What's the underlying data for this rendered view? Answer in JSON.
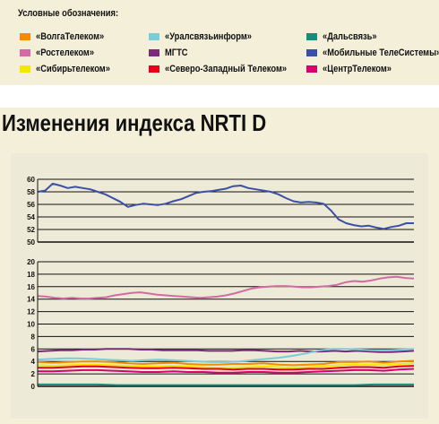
{
  "legend": {
    "title": "Условные обозначения:",
    "items": [
      {
        "label": "«ВолгаТелеком»",
        "color": "#f28c00"
      },
      {
        "label": "«Уралсвязьинформ»",
        "color": "#7ccbd8"
      },
      {
        "label": "«Дальсвязь»",
        "color": "#1a8a7a"
      },
      {
        "label": "«Ростелеком»",
        "color": "#d46aa3"
      },
      {
        "label": "МГТС",
        "color": "#7a2a7a"
      },
      {
        "label": "«Мобильные ТелеСистемы»",
        "color": "#3c4fa8"
      },
      {
        "label": "«Сибирьтелеком»",
        "color": "#f5e600"
      },
      {
        "label": "«Северо-Западный Телеком»",
        "color": "#e3001b"
      },
      {
        "label": "«ЦентрТелеком»",
        "color": "#d6006f"
      }
    ]
  },
  "heading": "Изменения индекса NRTI D",
  "chart_data": [
    {
      "type": "line",
      "ylim": [
        50,
        60
      ],
      "yticks": [
        "50",
        "52",
        "54",
        "56",
        "58",
        "60"
      ],
      "grid": true,
      "series": [
        {
          "name": "«Мобильные ТелеСистемы»",
          "color": "#3c4fa8",
          "values": [
            58.0,
            58.2,
            59.3,
            59.0,
            58.6,
            58.8,
            58.6,
            58.4,
            58.0,
            57.6,
            57.0,
            56.4,
            55.6,
            55.9,
            56.1,
            56.0,
            55.9,
            56.1,
            56.5,
            56.8,
            57.3,
            57.8,
            58.0,
            58.1,
            58.3,
            58.5,
            58.9,
            59.0,
            58.6,
            58.4,
            58.2,
            58.0,
            57.6,
            57.0,
            56.5,
            56.3,
            56.4,
            56.3,
            56.1,
            55.0,
            53.6,
            53.0,
            52.7,
            52.5,
            52.6,
            52.3,
            52.1,
            52.4,
            52.6,
            53.0,
            53.0
          ]
        }
      ]
    },
    {
      "type": "line",
      "ylim": [
        0,
        20
      ],
      "yticks": [
        "0",
        "2",
        "4",
        "6",
        "8",
        "10",
        "12",
        "14",
        "16",
        "18",
        "20"
      ],
      "grid": true,
      "series": [
        {
          "name": "«Ростелеком»",
          "color": "#d46aa3",
          "values": [
            14.5,
            14.4,
            14.2,
            14.1,
            14.2,
            14.1,
            14.1,
            14.2,
            14.3,
            14.6,
            14.8,
            15.0,
            15.1,
            14.9,
            14.7,
            14.6,
            14.5,
            14.4,
            14.3,
            14.2,
            14.3,
            14.4,
            14.6,
            14.9,
            15.3,
            15.7,
            15.9,
            16.0,
            16.1,
            16.1,
            16.0,
            15.9,
            15.9,
            16.0,
            16.1,
            16.3,
            16.7,
            16.9,
            16.8,
            17.0,
            17.3,
            17.5,
            17.6,
            17.4,
            17.3
          ]
        },
        {
          "name": "МГТС",
          "color": "#7a2a7a",
          "values": [
            5.6,
            5.7,
            5.8,
            5.8,
            5.9,
            5.9,
            6.0,
            6.0,
            6.0,
            5.9,
            5.9,
            5.8,
            5.8,
            5.8,
            5.8,
            5.7,
            5.7,
            5.7,
            5.8,
            5.8,
            5.7,
            5.6,
            5.6,
            5.7,
            5.6,
            5.6,
            5.7,
            5.6,
            5.7,
            5.6,
            5.5,
            5.5,
            5.6,
            5.7
          ]
        },
        {
          "name": "«Уралсвязьинформ»",
          "color": "#7ccbd8",
          "values": [
            4.3,
            4.4,
            4.5,
            4.5,
            4.4,
            4.3,
            4.2,
            4.1,
            4.2,
            4.3,
            4.2,
            4.1,
            4.0,
            3.9,
            3.9,
            4.0,
            4.2,
            4.4,
            4.6,
            4.9,
            5.3,
            5.8,
            6.0,
            6.0,
            5.9,
            5.8,
            5.8,
            5.9,
            6.0
          ]
        },
        {
          "name": "«ВолгаТелеком»",
          "color": "#f28c00",
          "values": [
            3.9,
            3.8,
            3.9,
            4.0,
            4.0,
            3.9,
            3.7,
            3.6,
            3.7,
            3.8,
            3.6,
            3.5,
            3.5,
            3.6,
            3.6,
            3.7,
            3.5,
            3.4,
            3.5,
            3.6,
            3.9,
            3.9,
            4.0,
            3.8,
            4.0,
            4.1
          ]
        },
        {
          "name": "«Сибирьтелеком»",
          "color": "#f5e600",
          "values": [
            3.4,
            3.3,
            3.4,
            3.5,
            3.5,
            3.4,
            3.3,
            3.2,
            3.2,
            3.3,
            3.2,
            3.1,
            3.0,
            3.0,
            3.1,
            3.2,
            3.1,
            3.0,
            3.1,
            3.2,
            3.4,
            3.5,
            3.5,
            3.4,
            3.6,
            3.7
          ]
        },
        {
          "name": "«Северо-Западный Телеком»",
          "color": "#e3001b",
          "values": [
            3.0,
            3.0,
            3.1,
            3.2,
            3.2,
            3.1,
            3.0,
            2.9,
            2.9,
            3.0,
            2.9,
            2.8,
            2.8,
            2.7,
            2.8,
            2.8,
            2.7,
            2.7,
            2.8,
            2.8,
            3.0,
            3.1,
            3.1,
            3.0,
            3.2,
            3.3
          ]
        },
        {
          "name": "«ЦентрТелеком»",
          "color": "#d6006f",
          "values": [
            2.4,
            2.4,
            2.5,
            2.6,
            2.6,
            2.5,
            2.4,
            2.3,
            2.3,
            2.4,
            2.3,
            2.3,
            2.2,
            2.2,
            2.3,
            2.3,
            2.2,
            2.2,
            2.3,
            2.4,
            2.5,
            2.6,
            2.6,
            2.5,
            2.7,
            2.8
          ]
        },
        {
          "name": "«Дальсвязь»",
          "color": "#1a8a7a",
          "values": [
            0.3,
            0.3,
            0.3,
            0.3,
            0.2,
            0.2,
            0.2,
            0.2,
            0.2,
            0.2,
            0.2,
            0.2,
            0.2,
            0.2,
            0.2,
            0.2,
            0.2,
            0.3,
            0.3,
            0.3
          ]
        }
      ]
    }
  ]
}
